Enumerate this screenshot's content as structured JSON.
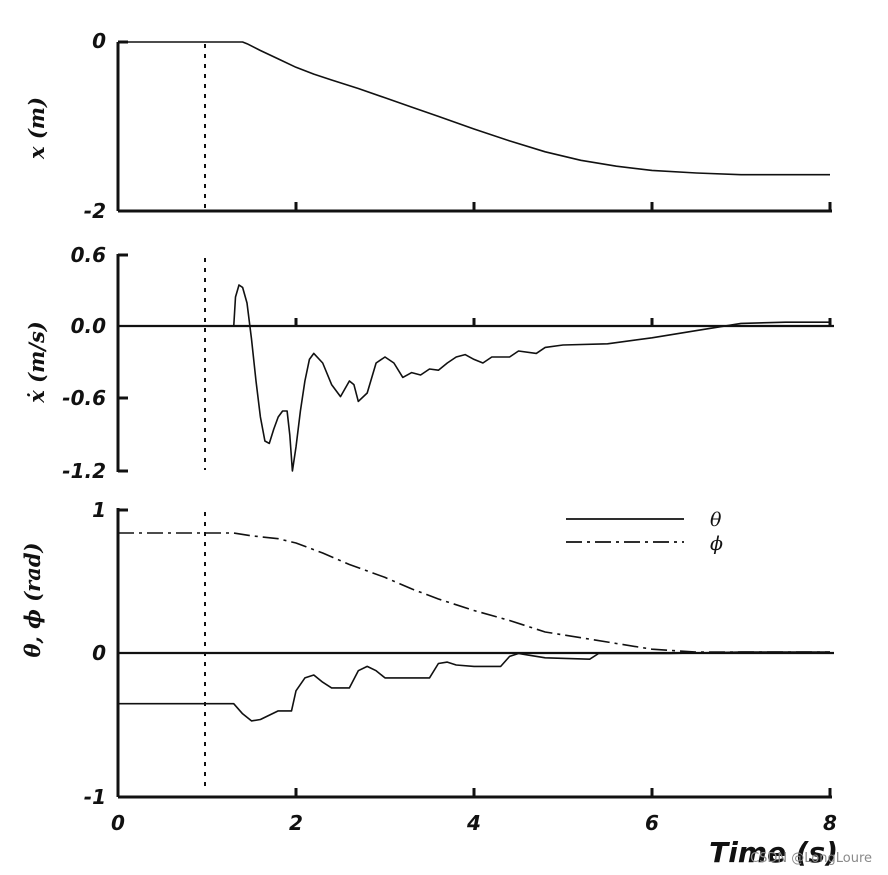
{
  "chart_data": [
    {
      "type": "line",
      "ylabel": "x (m)",
      "xlim": [
        0,
        8
      ],
      "ylim": [
        -2,
        0
      ],
      "yticks": [
        "0",
        "-2"
      ],
      "vline_x": 1,
      "series": [
        {
          "name": "x",
          "style": "solid",
          "points": [
            [
              0,
              0
            ],
            [
              1.4,
              0
            ],
            [
              1.45,
              -0.02
            ],
            [
              1.6,
              -0.1
            ],
            [
              1.8,
              -0.2
            ],
            [
              2,
              -0.3
            ],
            [
              2.2,
              -0.38
            ],
            [
              2.4,
              -0.45
            ],
            [
              2.7,
              -0.55
            ],
            [
              3,
              -0.66
            ],
            [
              3.3,
              -0.77
            ],
            [
              3.6,
              -0.88
            ],
            [
              4,
              -1.03
            ],
            [
              4.4,
              -1.17
            ],
            [
              4.8,
              -1.3
            ],
            [
              5.2,
              -1.4
            ],
            [
              5.6,
              -1.47
            ],
            [
              6,
              -1.52
            ],
            [
              6.5,
              -1.55
            ],
            [
              7,
              -1.57
            ],
            [
              8,
              -1.57
            ]
          ]
        }
      ]
    },
    {
      "type": "line",
      "ylabel": "ẋ (m/s)",
      "xlim": [
        0,
        8
      ],
      "ylim": [
        -1.2,
        0.6
      ],
      "yticks": [
        "0.6",
        "0.0",
        "-0.6",
        "-1.2"
      ],
      "vline_x": 1,
      "series": [
        {
          "name": "xdot",
          "style": "solid",
          "points": [
            [
              1.3,
              0
            ],
            [
              1.32,
              0.25
            ],
            [
              1.36,
              0.35
            ],
            [
              1.4,
              0.33
            ],
            [
              1.45,
              0.2
            ],
            [
              1.5,
              -0.1
            ],
            [
              1.55,
              -0.45
            ],
            [
              1.6,
              -0.75
            ],
            [
              1.65,
              -0.95
            ],
            [
              1.7,
              -0.97
            ],
            [
              1.75,
              -0.85
            ],
            [
              1.8,
              -0.75
            ],
            [
              1.85,
              -0.7
            ],
            [
              1.9,
              -0.7
            ],
            [
              1.93,
              -0.9
            ],
            [
              1.96,
              -1.2
            ],
            [
              2,
              -1.0
            ],
            [
              2.05,
              -0.7
            ],
            [
              2.1,
              -0.45
            ],
            [
              2.15,
              -0.27
            ],
            [
              2.2,
              -0.22
            ],
            [
              2.3,
              -0.3
            ],
            [
              2.4,
              -0.48
            ],
            [
              2.5,
              -0.58
            ],
            [
              2.6,
              -0.45
            ],
            [
              2.65,
              -0.48
            ],
            [
              2.7,
              -0.62
            ],
            [
              2.8,
              -0.55
            ],
            [
              2.9,
              -0.3
            ],
            [
              3,
              -0.25
            ],
            [
              3.1,
              -0.3
            ],
            [
              3.2,
              -0.42
            ],
            [
              3.3,
              -0.38
            ],
            [
              3.4,
              -0.4
            ],
            [
              3.5,
              -0.35
            ],
            [
              3.6,
              -0.36
            ],
            [
              3.7,
              -0.3
            ],
            [
              3.8,
              -0.25
            ],
            [
              3.9,
              -0.23
            ],
            [
              4.0,
              -0.27
            ],
            [
              4.1,
              -0.3
            ],
            [
              4.2,
              -0.25
            ],
            [
              4.4,
              -0.25
            ],
            [
              4.5,
              -0.2
            ],
            [
              4.7,
              -0.22
            ],
            [
              4.8,
              -0.17
            ],
            [
              5.0,
              -0.15
            ],
            [
              5.5,
              -0.14
            ],
            [
              6.0,
              -0.09
            ],
            [
              6.5,
              -0.03
            ],
            [
              7,
              0.03
            ],
            [
              7.5,
              0.04
            ],
            [
              8,
              0.04
            ]
          ]
        }
      ]
    },
    {
      "type": "line",
      "ylabel": "θ, ϕ (rad)",
      "xlim": [
        0,
        8
      ],
      "ylim": [
        -1,
        1
      ],
      "yticks": [
        "1",
        "0",
        "-1"
      ],
      "vline_x": 1,
      "legend": [
        "θ",
        "ϕ"
      ],
      "series": [
        {
          "name": "θ",
          "style": "solid",
          "points": [
            [
              0,
              -0.35
            ],
            [
              1.3,
              -0.35
            ],
            [
              1.4,
              -0.42
            ],
            [
              1.5,
              -0.47
            ],
            [
              1.6,
              -0.46
            ],
            [
              1.8,
              -0.4
            ],
            [
              1.95,
              -0.4
            ],
            [
              2.0,
              -0.26
            ],
            [
              2.1,
              -0.17
            ],
            [
              2.2,
              -0.15
            ],
            [
              2.3,
              -0.2
            ],
            [
              2.4,
              -0.24
            ],
            [
              2.6,
              -0.24
            ],
            [
              2.7,
              -0.12
            ],
            [
              2.8,
              -0.09
            ],
            [
              2.9,
              -0.12
            ],
            [
              3.0,
              -0.17
            ],
            [
              3.5,
              -0.17
            ],
            [
              3.6,
              -0.07
            ],
            [
              3.7,
              -0.06
            ],
            [
              3.8,
              -0.08
            ],
            [
              4.0,
              -0.09
            ],
            [
              4.3,
              -0.09
            ],
            [
              4.4,
              -0.02
            ],
            [
              4.5,
              0.0
            ],
            [
              4.6,
              -0.01
            ],
            [
              4.8,
              -0.03
            ],
            [
              5.3,
              -0.04
            ],
            [
              5.4,
              0.0
            ],
            [
              6,
              0
            ],
            [
              6.2,
              0.0
            ],
            [
              7,
              0.01
            ],
            [
              8,
              0.01
            ]
          ]
        },
        {
          "name": "ϕ",
          "style": "dashdot",
          "points": [
            [
              0,
              0.84
            ],
            [
              1.3,
              0.84
            ],
            [
              1.5,
              0.82
            ],
            [
              1.8,
              0.8
            ],
            [
              2.0,
              0.77
            ],
            [
              2.3,
              0.7
            ],
            [
              2.6,
              0.62
            ],
            [
              3.0,
              0.53
            ],
            [
              3.3,
              0.45
            ],
            [
              3.6,
              0.38
            ],
            [
              4.0,
              0.3
            ],
            [
              4.4,
              0.23
            ],
            [
              4.8,
              0.15
            ],
            [
              5.2,
              0.11
            ],
            [
              5.6,
              0.07
            ],
            [
              6.0,
              0.03
            ],
            [
              6.5,
              0.01
            ],
            [
              7,
              0.01
            ],
            [
              8,
              0.01
            ]
          ]
        }
      ]
    }
  ],
  "shared_x": {
    "ticks": [
      "0",
      "2",
      "4",
      "6",
      "8"
    ],
    "title": "Time (s)"
  },
  "watermark": "CSDN @LongLoure"
}
